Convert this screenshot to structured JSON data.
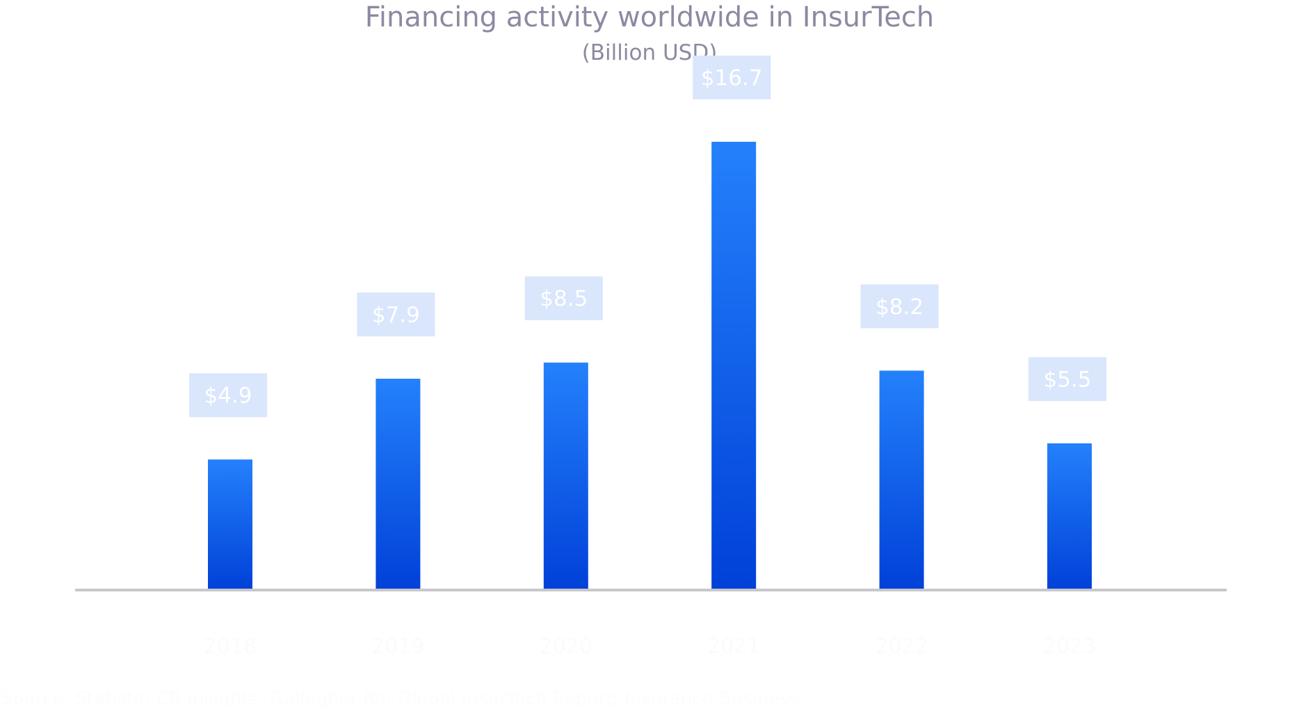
{
  "chart_data": {
    "type": "bar",
    "title": "Financing activity worldwide in InsurTech",
    "subtitle": "(Billion  USD)",
    "categories": [
      "2018",
      "2019",
      "2020",
      "2021",
      "2022",
      "2023"
    ],
    "values": [
      4.9,
      7.9,
      8.5,
      16.7,
      8.2,
      5.5
    ],
    "data_labels": [
      "$4.9",
      "$7.9",
      "$8.5",
      "$16.7",
      "$8.2",
      "$5.5"
    ],
    "xlabel": "",
    "ylabel": "",
    "ylim": [
      0,
      16.7
    ],
    "grid": false,
    "legend": "none",
    "colors": {
      "bar_top": "#2481fb",
      "bar_bottom": "#0040d8",
      "label_box": "#d9e6fc",
      "label_text": "#ffffff",
      "title": "#8b8aa2",
      "baseline": "#c8c8cc"
    }
  },
  "source_note": "Source: Statista; CB Insights; Gallagher Re; Global InsurTech Report; Insurance Business"
}
